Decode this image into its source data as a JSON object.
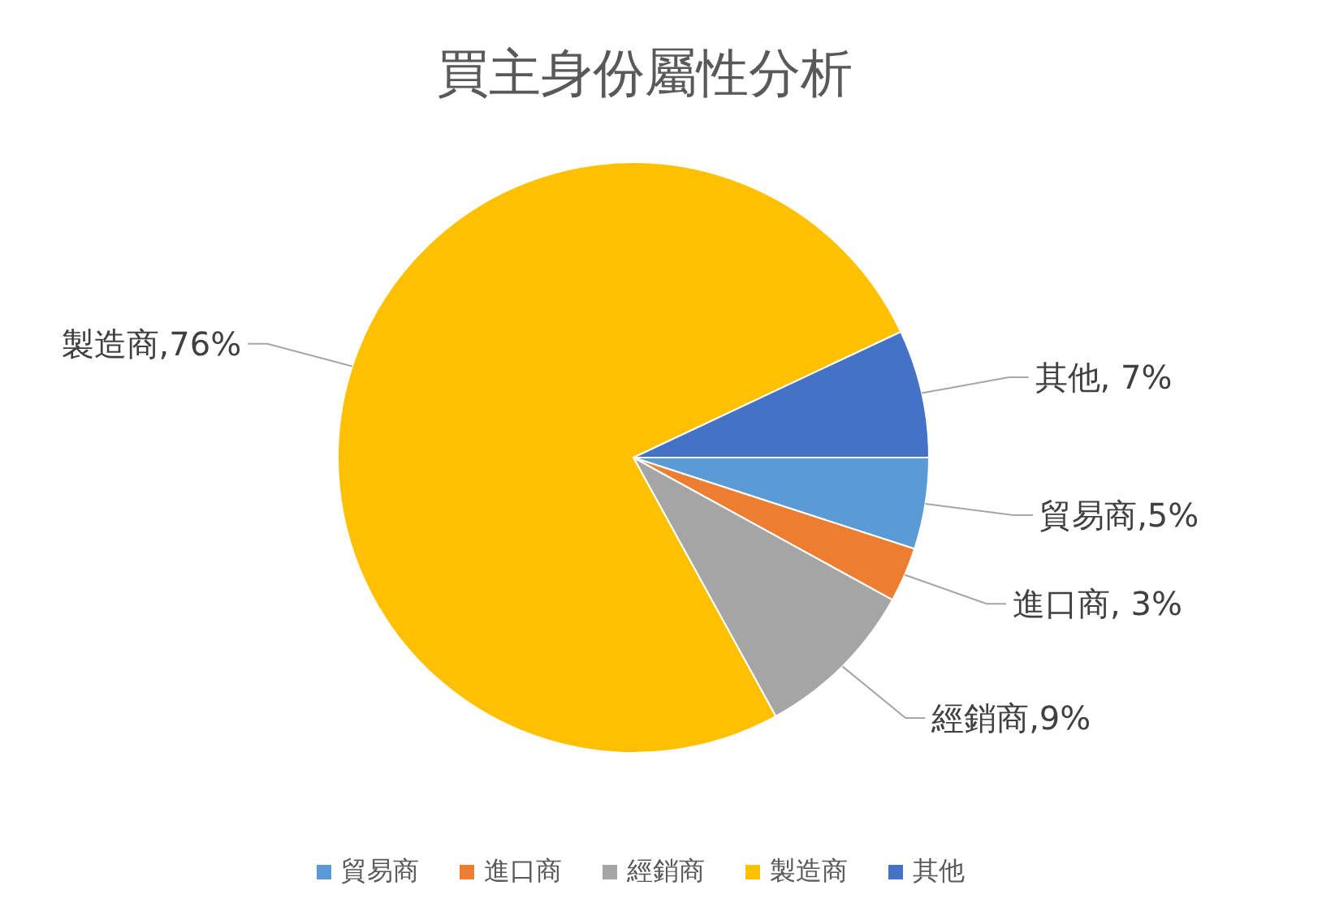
{
  "chart_data": {
    "type": "pie",
    "title": "買主身份屬性分析",
    "categories": [
      "貿易商",
      "進口商",
      "經銷商",
      "製造商",
      "其他"
    ],
    "values": [
      5,
      3,
      9,
      76,
      7
    ],
    "colors": [
      "#5b9bd5",
      "#ed7d31",
      "#a5a5a5",
      "#ffc000",
      "#4472c4"
    ],
    "value_labels": [
      "貿易商,5%",
      "進口商, 3%",
      "經銷商,9%",
      "製造商,76%",
      "其他, 7%"
    ],
    "legend": "bottom"
  }
}
